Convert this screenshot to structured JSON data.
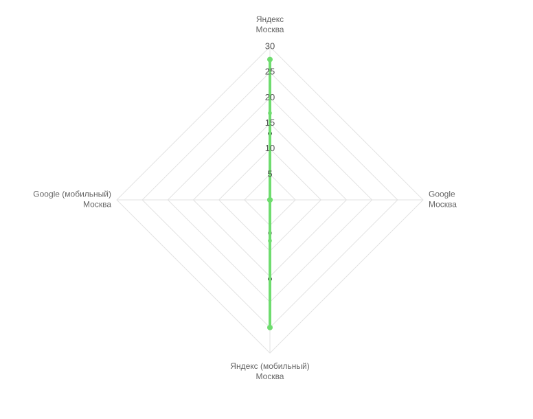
{
  "chart_data": {
    "type": "radar",
    "categories": [
      [
        "Яндекс",
        "Москва"
      ],
      [
        "Google",
        "Москва"
      ],
      [
        "Яндекс (мобильный)",
        "Москва"
      ],
      [
        "Google (мобильный)",
        "Москва"
      ]
    ],
    "rlim": [
      0,
      30
    ],
    "rticks": [
      5,
      10,
      15,
      20,
      25,
      30
    ],
    "grid": true,
    "series": [
      {
        "color": "#444444",
        "values": [
          13,
          0,
          15.5,
          0
        ]
      },
      {
        "color": "#999999",
        "values": [
          25.5,
          0,
          6.5,
          0
        ]
      },
      {
        "color": "#8fe08f",
        "values": [
          17,
          0,
          8,
          0
        ]
      },
      {
        "color": "#6fdc6f",
        "values": [
          27.5,
          0,
          25,
          0
        ]
      }
    ]
  }
}
